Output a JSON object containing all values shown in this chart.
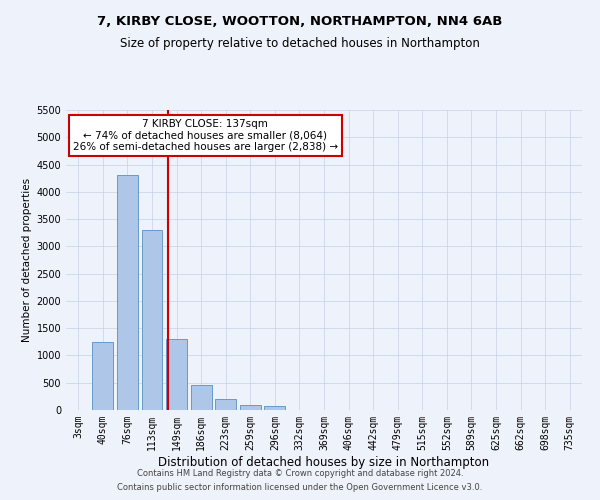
{
  "title": "7, KIRBY CLOSE, WOOTTON, NORTHAMPTON, NN4 6AB",
  "subtitle": "Size of property relative to detached houses in Northampton",
  "xlabel": "Distribution of detached houses by size in Northampton",
  "ylabel": "Number of detached properties",
  "footer_line1": "Contains HM Land Registry data © Crown copyright and database right 2024.",
  "footer_line2": "Contains public sector information licensed under the Open Government Licence v3.0.",
  "categories": [
    "3sqm",
    "40sqm",
    "76sqm",
    "113sqm",
    "149sqm",
    "186sqm",
    "223sqm",
    "259sqm",
    "296sqm",
    "332sqm",
    "369sqm",
    "406sqm",
    "442sqm",
    "479sqm",
    "515sqm",
    "552sqm",
    "589sqm",
    "625sqm",
    "662sqm",
    "698sqm",
    "735sqm"
  ],
  "bar_values": [
    0,
    1250,
    4300,
    3300,
    1300,
    450,
    200,
    100,
    70,
    0,
    0,
    0,
    0,
    0,
    0,
    0,
    0,
    0,
    0,
    0,
    0
  ],
  "bar_color": "#aec6e8",
  "bar_edge_color": "#6699cc",
  "ylim": [
    0,
    5500
  ],
  "yticks": [
    0,
    500,
    1000,
    1500,
    2000,
    2500,
    3000,
    3500,
    4000,
    4500,
    5000,
    5500
  ],
  "annotation_line1": "7 KIRBY CLOSE: 137sqm",
  "annotation_line2": "← 74% of detached houses are smaller (8,064)",
  "annotation_line3": "26% of semi-detached houses are larger (2,838) →",
  "vline_color": "#cc0000",
  "annotation_box_facecolor": "#ffffff",
  "annotation_box_edgecolor": "#cc0000",
  "grid_color": "#c8d0e8",
  "background_color": "#eef2fa",
  "title_fontsize": 9.5,
  "subtitle_fontsize": 8.5,
  "xlabel_fontsize": 8.5,
  "ylabel_fontsize": 7.5,
  "tick_fontsize": 7,
  "footer_fontsize": 6,
  "annot_fontsize": 7.5
}
